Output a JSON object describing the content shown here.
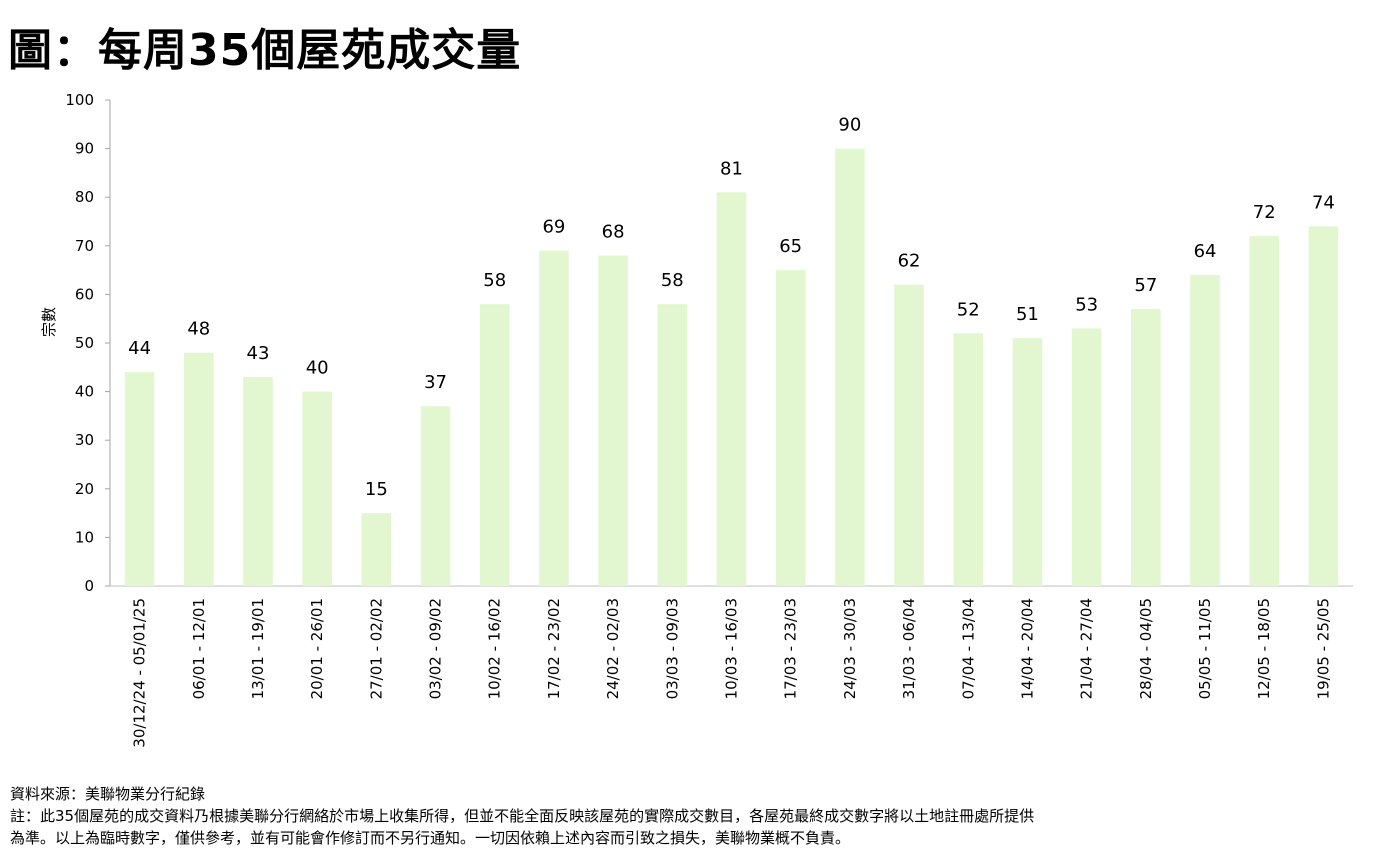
{
  "title": "圖：每周35個屋苑成交量",
  "footer": {
    "source": "資料來源：美聯物業分行紀錄",
    "note_line1": "註：此35個屋苑的成交資料乃根據美聯分行網絡於市場上收集所得，但並不能全面反映該屋苑的實際成交數目，各屋苑最終成交數字將以土地註冊處所提供",
    "note_line2": "為準。以上為臨時數字，僅供參考，並有可能會作修訂而不另行通知。一切因依賴上述內容而引致之損失，美聯物業概不負責。"
  },
  "chart_data": {
    "type": "bar",
    "ylabel": "宗數",
    "xlabel": "",
    "ylim": [
      0,
      100
    ],
    "yticks": [
      0,
      10,
      20,
      30,
      40,
      50,
      60,
      70,
      80,
      90,
      100
    ],
    "grid": false,
    "bar_color": "#e2f7cf",
    "categories": [
      "30/12/24 - 05/01/25",
      "06/01 - 12/01",
      "13/01 - 19/01",
      "20/01 - 26/01",
      "27/01 - 02/02",
      "03/02 - 09/02",
      "10/02 - 16/02",
      "17/02 - 23/02",
      "24/02 - 02/03",
      "03/03 - 09/03",
      "10/03 - 16/03",
      "17/03 - 23/03",
      "24/03 - 30/03",
      "31/03 - 06/04",
      "07/04 - 13/04",
      "14/04 - 20/04",
      "21/04 - 27/04",
      "28/04 - 04/05",
      "05/05 - 11/05",
      "12/05 - 18/05",
      "19/05 - 25/05"
    ],
    "values": [
      44,
      48,
      43,
      40,
      15,
      37,
      58,
      69,
      68,
      58,
      81,
      65,
      90,
      62,
      52,
      51,
      53,
      57,
      64,
      72,
      74
    ]
  }
}
